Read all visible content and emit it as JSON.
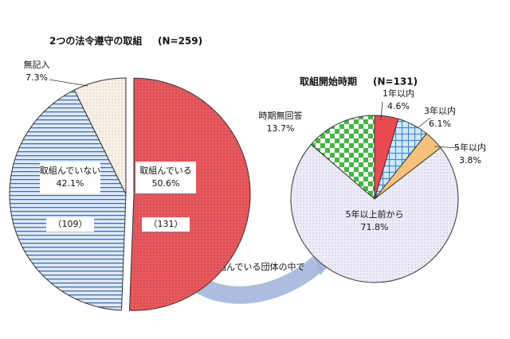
{
  "chart_data": [
    {
      "type": "pie",
      "title": "2つの法令遵守の取組",
      "subtitle": "(N=259)",
      "categories": [
        "取組んでいる",
        "取組んでいない",
        "無記入"
      ],
      "values": [
        50.6,
        42.1,
        7.3
      ],
      "value_labels": [
        "50.6%",
        "42.1%",
        "7.3%"
      ],
      "counts": [
        131,
        109,
        null
      ],
      "count_labels": [
        "（131）",
        "（109）",
        null
      ],
      "colors": [
        "#e85a5e",
        "#dfeaf6",
        "#f7f1e8"
      ],
      "pattern_colors": [
        "#a02a30",
        "#3f6fb0",
        "#c9b9a0"
      ],
      "patterns": [
        "dots",
        "hlines",
        "dots"
      ],
      "annotation": "取組んでいる団体の中で"
    },
    {
      "type": "pie",
      "title": "取組開始時期",
      "subtitle": "(N=131)",
      "categories": [
        "1年以内",
        "3年以内",
        "5年以内",
        "5年以上前から",
        "時期無回答"
      ],
      "values": [
        4.6,
        6.1,
        3.8,
        71.8,
        13.7
      ],
      "value_labels": [
        "4.6%",
        "6.1%",
        "3.8%",
        "71.8%",
        "13.7%"
      ],
      "colors": [
        "#e84a4f",
        "#d3e5f7",
        "#f6c27a",
        "#eeedf7",
        "#3dbb3d"
      ],
      "pattern_colors": [
        "#b02a30",
        "#3f7fcf",
        "#d89a40",
        "#a8a8c8",
        "#ffffff"
      ],
      "patterns": [
        "none",
        "grid",
        "none",
        "dots",
        "checker"
      ]
    }
  ]
}
